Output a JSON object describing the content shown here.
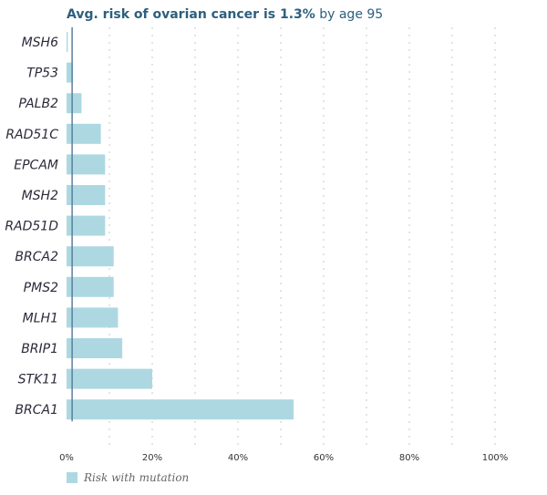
{
  "header": {
    "title_bold": "Avg. risk of ovarian cancer is 1.3%",
    "title_rest": " by age 95"
  },
  "legend": {
    "label": "Risk with mutation",
    "color": "#add8e2"
  },
  "colors": {
    "bar": "#add8e2",
    "baseline": "#5b7f9c",
    "grid": "#c8c8c8",
    "title": "#2d5f7f"
  },
  "chart_data": {
    "type": "bar",
    "orientation": "horizontal",
    "categories": [
      "MSH6",
      "TP53",
      "PALB2",
      "RAD51C",
      "EPCAM",
      "MSH2",
      "RAD51D",
      "BRCA2",
      "PMS2",
      "MLH1",
      "BRIP1",
      "STK11",
      "BRCA1"
    ],
    "series": [
      {
        "name": "Risk with mutation",
        "values": [
          0.3,
          1.5,
          3.5,
          8,
          9,
          9,
          9,
          11,
          11,
          12,
          13,
          20,
          53
        ]
      }
    ],
    "xlim": [
      0,
      100
    ],
    "xticks": [
      0,
      20,
      40,
      60,
      80,
      100
    ],
    "xtick_labels": [
      "0%",
      "20%",
      "40%",
      "60%",
      "80%",
      "100%"
    ],
    "minor_gridlines": [
      10,
      30,
      50,
      70,
      90
    ],
    "baseline_value": 1.3,
    "title": "Avg. risk of ovarian cancer is 1.3% by age 95",
    "xlabel": "",
    "ylabel": "",
    "legend_position": "bottom-left",
    "grid": true
  }
}
